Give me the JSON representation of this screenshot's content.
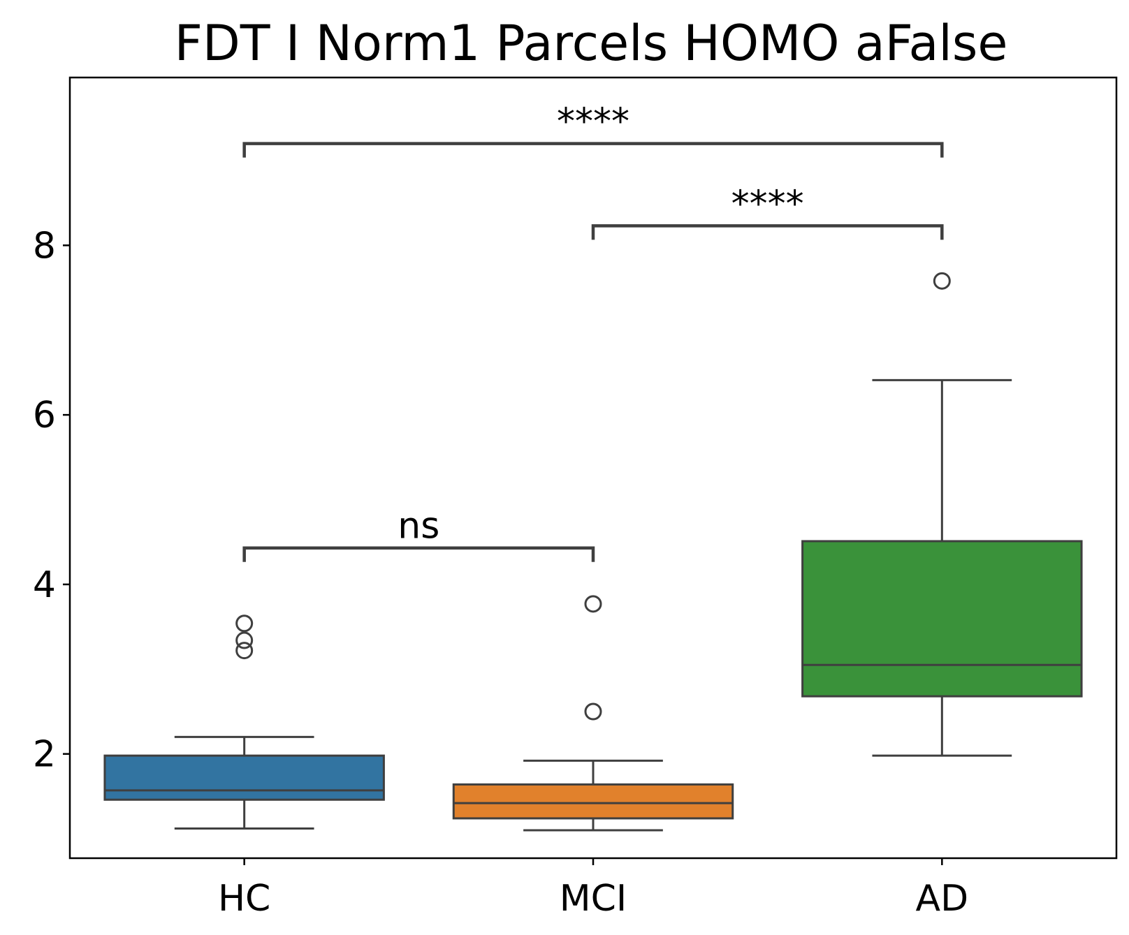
{
  "chart_data": {
    "type": "box",
    "title": "FDT I Norm1 Parcels HOMO aFalse",
    "xlabel": "",
    "ylabel": "",
    "ylim": [
      0.77,
      9.98
    ],
    "yticks": [
      2,
      4,
      6,
      8
    ],
    "ytick_labels": [
      "2",
      "4",
      "6",
      "8"
    ],
    "grid": false,
    "categories": [
      "HC",
      "MCI",
      "AD"
    ],
    "colors": {
      "HC": "#3274a1",
      "MCI": "#e1812c",
      "AD": "#3a923a",
      "lines": "#3f3f3f"
    },
    "boxes": [
      {
        "category": "HC",
        "whisker_low": 1.12,
        "q1": 1.46,
        "median": 1.57,
        "q3": 1.98,
        "whisker_high": 2.2,
        "outliers": [
          3.22,
          3.34,
          3.54
        ]
      },
      {
        "category": "MCI",
        "whisker_low": 1.1,
        "q1": 1.24,
        "median": 1.42,
        "q3": 1.64,
        "whisker_high": 1.92,
        "outliers": [
          2.5,
          3.77
        ]
      },
      {
        "category": "AD",
        "whisker_low": 1.98,
        "q1": 2.68,
        "median": 3.05,
        "q3": 4.51,
        "whisker_high": 6.41,
        "outliers": [
          7.58
        ]
      }
    ],
    "annotations": [
      {
        "from": "HC",
        "to": "MCI",
        "y": 4.43,
        "text": "ns"
      },
      {
        "from": "MCI",
        "to": "AD",
        "y": 8.23,
        "text": "****"
      },
      {
        "from": "HC",
        "to": "AD",
        "y": 9.2,
        "text": "****"
      }
    ]
  }
}
